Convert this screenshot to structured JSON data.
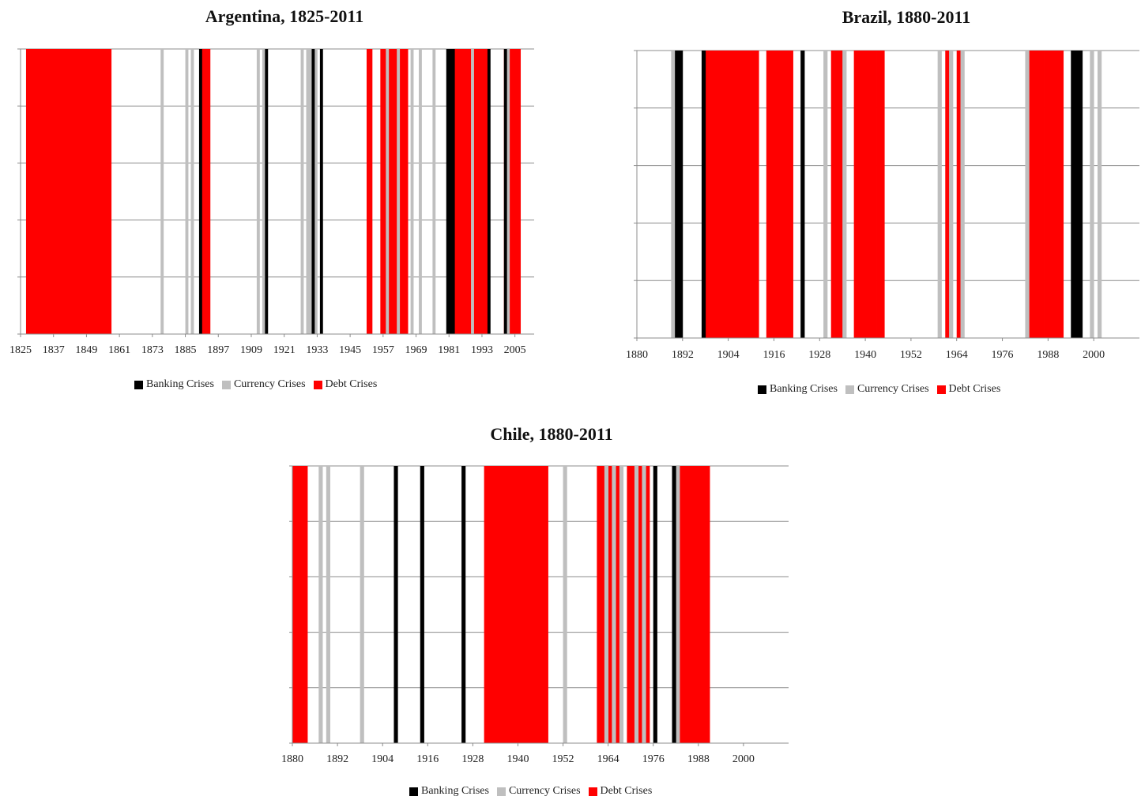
{
  "colors": {
    "banking": "#000000",
    "currency": "#bfbfbf",
    "debt": "#ff0000",
    "grid": "#8c8c8c"
  },
  "chart_data": [
    {
      "type": "bar",
      "title": "Argentina, 1825-2011",
      "xlim": [
        1825,
        2011
      ],
      "x_ticks": [
        "1825",
        "1837",
        "1849",
        "1861",
        "1873",
        "1885",
        "1897",
        "1909",
        "1921",
        "1933",
        "1945",
        "1957",
        "1969",
        "1981",
        "1993",
        "2005"
      ],
      "gridlines": 5,
      "legend": [
        "Banking Crises",
        "Currency Crises",
        "Debt Crises"
      ],
      "series": [
        {
          "name": "Banking Crises",
          "color": "#000000",
          "years": [
            1890,
            1914,
            1931,
            1934,
            1980,
            1981,
            1982,
            1995,
            2001
          ]
        },
        {
          "name": "Currency Crises",
          "color": "#bfbfbf",
          "years": [
            1876,
            1885,
            1887,
            1911,
            1913,
            1927,
            1929,
            1930,
            1931,
            1932,
            1958,
            1962,
            1967,
            1970,
            1975,
            1989,
            2002
          ]
        },
        {
          "name": "Debt Crises",
          "color": "#ff0000",
          "years": [
            1827,
            1828,
            1829,
            1830,
            1831,
            1832,
            1833,
            1834,
            1835,
            1836,
            1837,
            1838,
            1839,
            1840,
            1841,
            1842,
            1843,
            1844,
            1845,
            1846,
            1847,
            1848,
            1849,
            1850,
            1851,
            1852,
            1853,
            1854,
            1855,
            1856,
            1857,
            1891,
            1892,
            1893,
            1951,
            1952,
            1956,
            1957,
            1958,
            1959,
            1960,
            1961,
            1962,
            1963,
            1964,
            1965,
            1983,
            1984,
            1985,
            1986,
            1987,
            1988,
            1989,
            1990,
            1991,
            1992,
            1993,
            1994,
            2001,
            2002,
            2003,
            2004,
            2005,
            2006
          ]
        }
      ]
    },
    {
      "type": "bar",
      "title": "Brazil, 1880-2011",
      "xlim": [
        1880,
        2011
      ],
      "x_ticks": [
        "1880",
        "1892",
        "1904",
        "1916",
        "1928",
        "1940",
        "1952",
        "1964",
        "1976",
        "1988",
        "2000"
      ],
      "gridlines": 5,
      "legend": [
        "Banking Crises",
        "Currency Crises",
        "Debt Crises"
      ],
      "series": [
        {
          "name": "Banking Crises",
          "color": "#000000",
          "years": [
            1890,
            1891,
            1897,
            1923,
            1994,
            1995,
            1996
          ]
        },
        {
          "name": "Currency Crises",
          "color": "#bfbfbf",
          "years": [
            1889,
            1929,
            1934,
            1959,
            1962,
            1965,
            1982,
            1999,
            2001
          ]
        },
        {
          "name": "Debt Crises",
          "color": "#ff0000",
          "years": [
            1898,
            1899,
            1900,
            1901,
            1902,
            1903,
            1904,
            1905,
            1906,
            1907,
            1908,
            1909,
            1910,
            1911,
            1914,
            1915,
            1916,
            1917,
            1918,
            1919,
            1920,
            1931,
            1932,
            1933,
            1937,
            1938,
            1939,
            1940,
            1941,
            1942,
            1943,
            1944,
            1961,
            1964,
            1983,
            1984,
            1985,
            1986,
            1987,
            1988,
            1989,
            1990,
            1991
          ]
        }
      ]
    },
    {
      "type": "bar",
      "title": "Chile, 1880-2011",
      "xlim": [
        1880,
        2011
      ],
      "x_ticks": [
        "1880",
        "1892",
        "1904",
        "1916",
        "1928",
        "1940",
        "1952",
        "1964",
        "1976",
        "1988",
        "2000"
      ],
      "gridlines": 5,
      "legend": [
        "Banking Crises",
        "Currency Crises",
        "Debt Crises"
      ],
      "series": [
        {
          "name": "Banking Crises",
          "color": "#000000",
          "years": [
            1907,
            1914,
            1925,
            1976,
            1981
          ]
        },
        {
          "name": "Currency Crises",
          "color": "#bfbfbf",
          "years": [
            1887,
            1889,
            1898,
            1952,
            1963,
            1965,
            1967,
            1971,
            1973,
            1982
          ]
        },
        {
          "name": "Debt Crises",
          "color": "#ff0000",
          "years": [
            1880,
            1881,
            1882,
            1883,
            1931,
            1932,
            1933,
            1934,
            1935,
            1936,
            1937,
            1938,
            1939,
            1940,
            1941,
            1942,
            1943,
            1944,
            1945,
            1946,
            1947,
            1961,
            1962,
            1964,
            1966,
            1969,
            1970,
            1972,
            1974,
            1983,
            1984,
            1985,
            1986,
            1987,
            1988,
            1989,
            1990
          ]
        }
      ]
    }
  ]
}
